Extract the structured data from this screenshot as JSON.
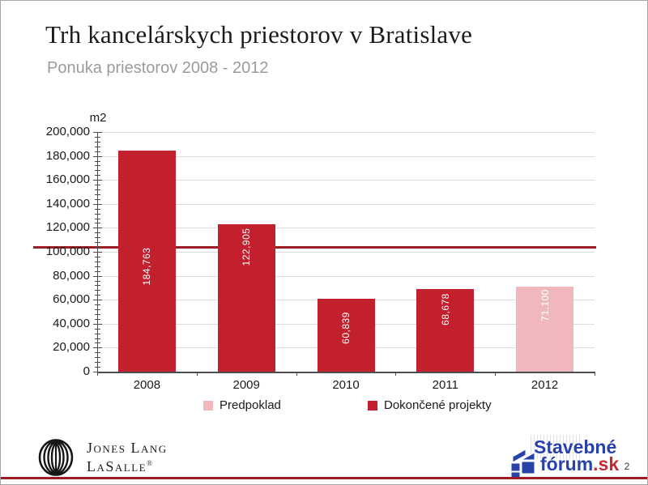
{
  "header": {
    "title": "Trh kancelárskych priestorov v Bratislave",
    "subtitle": "Ponuka priestorov 2008 - 2012"
  },
  "chart_data": {
    "type": "bar",
    "title": "Trh kancelárskych priestorov v Bratislave",
    "subtitle": "Ponuka priestorov 2008 - 2012",
    "xlabel": "",
    "ylabel": "m2",
    "ylim": [
      0,
      200000
    ],
    "ytick_step": 20000,
    "minor_tick_step": 4000,
    "grid": true,
    "legend_position": "bottom",
    "ytick_labels": [
      "0",
      "20,000",
      "40,000",
      "60,000",
      "80,000",
      "100,000",
      "120,000",
      "140,000",
      "160,000",
      "180,000",
      "200,000"
    ],
    "categories": [
      "2008",
      "2009",
      "2010",
      "2011",
      "2012"
    ],
    "series": [
      {
        "name": "Dokončené projekty",
        "color": "#c2202c",
        "values": [
          184763,
          122905,
          60839,
          68678,
          null
        ]
      },
      {
        "name": "Predpoklad",
        "color": "#f0b8bc",
        "values": [
          null,
          null,
          null,
          null,
          71100
        ]
      }
    ],
    "bar_value_labels": [
      "184,763",
      "122,905",
      "60,839",
      "68,678",
      "71,100"
    ],
    "legend": [
      {
        "label": "Predpoklad",
        "color": "#f0b8bc"
      },
      {
        "label": "Dokončené projekty",
        "color": "#c2202c"
      }
    ],
    "accent_rule_color": "#9e1c24"
  },
  "footer": {
    "jll": {
      "line1": "Jones Lang",
      "line2": "LaSalle",
      "reg": "®"
    },
    "stavebne": {
      "word1": "Stavebné",
      "word2": "fórum",
      "word3": ".sk"
    },
    "page_number": "2"
  }
}
